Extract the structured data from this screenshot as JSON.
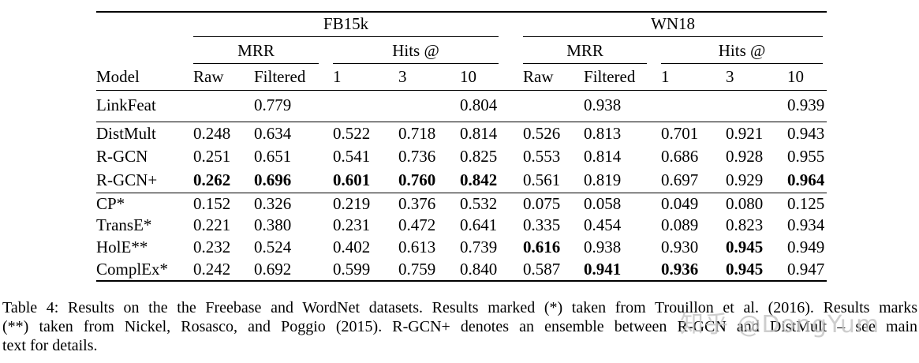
{
  "table": {
    "datasets": [
      {
        "label": "FB15k"
      },
      {
        "label": "WN18"
      }
    ],
    "metric_groups": {
      "mrr": "MRR",
      "hits": "Hits @"
    },
    "column_headers": {
      "model": "Model",
      "raw": "Raw",
      "filtered": "Filtered",
      "hits1": "1",
      "hits3": "3",
      "hits10": "10"
    },
    "sections": [
      {
        "rows": [
          {
            "model": "LinkFeat",
            "cells": [
              "",
              {
                "v": "0.779"
              },
              "",
              "",
              {
                "v": "0.804"
              },
              "",
              {
                "v": "0.938"
              },
              "",
              "",
              {
                "v": "0.939"
              }
            ]
          }
        ]
      },
      {
        "rows": [
          {
            "model": "DistMult",
            "cells": [
              {
                "v": "0.248"
              },
              {
                "v": "0.634"
              },
              {
                "v": "0.522"
              },
              {
                "v": "0.718"
              },
              {
                "v": "0.814"
              },
              {
                "v": "0.526"
              },
              {
                "v": "0.813"
              },
              {
                "v": "0.701"
              },
              {
                "v": "0.921"
              },
              {
                "v": "0.943"
              }
            ]
          },
          {
            "model": "R-GCN",
            "cells": [
              {
                "v": "0.251"
              },
              {
                "v": "0.651"
              },
              {
                "v": "0.541"
              },
              {
                "v": "0.736"
              },
              {
                "v": "0.825"
              },
              {
                "v": "0.553"
              },
              {
                "v": "0.814"
              },
              {
                "v": "0.686"
              },
              {
                "v": "0.928"
              },
              {
                "v": "0.955"
              }
            ]
          },
          {
            "model": "R-GCN+",
            "cells": [
              {
                "v": "0.262",
                "b": true
              },
              {
                "v": "0.696",
                "b": true
              },
              {
                "v": "0.601",
                "b": true
              },
              {
                "v": "0.760",
                "b": true
              },
              {
                "v": "0.842",
                "b": true
              },
              {
                "v": "0.561"
              },
              {
                "v": "0.819"
              },
              {
                "v": "0.697"
              },
              {
                "v": "0.929"
              },
              {
                "v": "0.964",
                "b": true
              }
            ]
          }
        ]
      },
      {
        "rows": [
          {
            "model": "CP*",
            "cells": [
              {
                "v": "0.152"
              },
              {
                "v": "0.326"
              },
              {
                "v": "0.219"
              },
              {
                "v": "0.376"
              },
              {
                "v": "0.532"
              },
              {
                "v": "0.075"
              },
              {
                "v": "0.058"
              },
              {
                "v": "0.049"
              },
              {
                "v": "0.080"
              },
              {
                "v": "0.125"
              }
            ]
          },
          {
            "model": "TransE*",
            "cells": [
              {
                "v": "0.221"
              },
              {
                "v": "0.380"
              },
              {
                "v": "0.231"
              },
              {
                "v": "0.472"
              },
              {
                "v": "0.641"
              },
              {
                "v": "0.335"
              },
              {
                "v": "0.454"
              },
              {
                "v": "0.089"
              },
              {
                "v": "0.823"
              },
              {
                "v": "0.934"
              }
            ]
          },
          {
            "model": "HolE**",
            "cells": [
              {
                "v": "0.232"
              },
              {
                "v": "0.524"
              },
              {
                "v": "0.402"
              },
              {
                "v": "0.613"
              },
              {
                "v": "0.739"
              },
              {
                "v": "0.616",
                "b": true
              },
              {
                "v": "0.938"
              },
              {
                "v": "0.930"
              },
              {
                "v": "0.945",
                "b": true
              },
              {
                "v": "0.949"
              }
            ]
          },
          {
            "model": "ComplEx*",
            "cells": [
              {
                "v": "0.242"
              },
              {
                "v": "0.692"
              },
              {
                "v": "0.599"
              },
              {
                "v": "0.759"
              },
              {
                "v": "0.840"
              },
              {
                "v": "0.587"
              },
              {
                "v": "0.941",
                "b": true
              },
              {
                "v": "0.936",
                "b": true
              },
              {
                "v": "0.945",
                "b": true
              },
              {
                "v": "0.947"
              }
            ]
          }
        ]
      }
    ]
  },
  "caption": {
    "lines": [
      "Table 4: Results on the the Freebase and WordNet datasets. Results marked (*) taken from Trouillon et al. (2016). Results marks",
      "(**) taken from Nickel, Rosasco, and Poggio (2015). R-GCN+ denotes an ensemble between R-GCN and DistMult – see main",
      "text for details."
    ]
  },
  "watermark": {
    "text": "知乎 @DongYum",
    "color": "#c3c3c3"
  }
}
